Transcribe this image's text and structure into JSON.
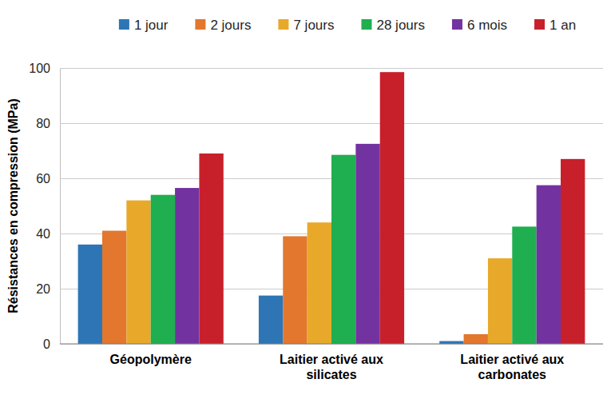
{
  "chart_data": {
    "type": "bar",
    "y_label": "Résistances en compression (MPa)",
    "categories": [
      "Géopolymère",
      "Laitier activé aux silicates",
      "Laitier activé aux carbonates"
    ],
    "series": [
      {
        "name": "1 jour",
        "color": "#2e75b6",
        "values": [
          36,
          17.5,
          1
        ]
      },
      {
        "name": "2 jours",
        "color": "#e2772d",
        "values": [
          41,
          39,
          3.5
        ]
      },
      {
        "name": "7 jours",
        "color": "#e8a92a",
        "values": [
          52,
          44,
          31
        ]
      },
      {
        "name": "28 jours",
        "color": "#1fae50",
        "values": [
          54,
          68.5,
          42.5
        ]
      },
      {
        "name": "6 mois",
        "color": "#7232a0",
        "values": [
          56.5,
          72.5,
          57.5
        ]
      },
      {
        "name": "1 an",
        "color": "#c8202a",
        "values": [
          69,
          98.5,
          67
        ]
      }
    ],
    "ylim": [
      0,
      100
    ],
    "yticks": [
      0,
      20,
      40,
      60,
      80,
      100
    ],
    "grid": true,
    "legend": "top"
  }
}
